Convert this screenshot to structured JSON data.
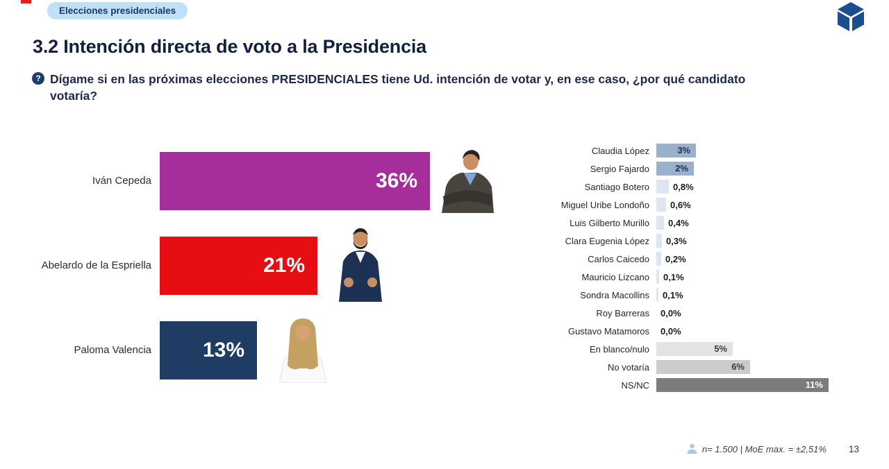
{
  "header": {
    "badge_label": "Elecciones presidenciales",
    "logo_icon": "cube-logo-icon"
  },
  "page": {
    "title": "3.2 Intención directa de voto a la Presidencia",
    "page_number": "13"
  },
  "question": {
    "icon": "question-mark-icon",
    "icon_glyph": "?",
    "lines": [
      "Dígame si en las próximas elecciones PRESIDENCIALES tiene Ud. intención de votar y, en ese caso, ¿por qué candidato",
      "votaría?"
    ]
  },
  "chart_data": [
    {
      "type": "bar",
      "orientation": "horizontal",
      "categories": [
        "Iván Cepeda",
        "Abelardo de la Espriella",
        "Paloma Valencia"
      ],
      "values": [
        36,
        21,
        13
      ],
      "value_labels": [
        "36%",
        "21%",
        "13%"
      ],
      "bar_colors": [
        "#A52E9C",
        "#E60D13",
        "#1F3D64"
      ],
      "value_label_color": "#FFFFFF",
      "xlim": [
        0,
        40
      ],
      "grid": false,
      "photos": [
        "ivan-cepeda-photo",
        "abelardo-espriella-photo",
        "paloma-valencia-photo"
      ]
    },
    {
      "type": "bar",
      "orientation": "horizontal",
      "categories": [
        "Claudia López",
        "Sergio Fajardo",
        "Santiago Botero",
        "Miguel Uribe Londoño",
        "Luis Gilberto Murillo",
        "Clara Eugenia López",
        "Carlos Caicedo",
        "Mauricio Lizcano",
        "Sondra Macollins",
        "Roy Barreras",
        "Gustavo Matamoros",
        "En blanco/nulo",
        "No votaría",
        "NS/NC"
      ],
      "values": [
        3,
        2,
        0.8,
        0.6,
        0.4,
        0.3,
        0.2,
        0.1,
        0.1,
        0.0,
        0.0,
        5,
        6,
        11
      ],
      "value_labels": [
        "3%",
        "2%",
        "0,8%",
        "0,6%",
        "0,4%",
        "0,3%",
        "0,2%",
        "0,1%",
        "0,1%",
        "0,0%",
        "0,0%",
        "5%",
        "6%",
        "11%"
      ],
      "bar_colors": [
        "#9AB1CC",
        "#9AB1CC",
        "#DCE6F2",
        "#DCE6F2",
        "#DCE6F2",
        "#DCE6F2",
        "#DCE6F2",
        "#DCE6F2",
        "#DCE6F2",
        "#DCE6F2",
        "#DCE6F2",
        "#E3E3E3",
        "#CBCBCB",
        "#7C7C7C"
      ],
      "label_inside": [
        true,
        true,
        false,
        false,
        false,
        false,
        false,
        false,
        false,
        false,
        false,
        true,
        true,
        true
      ],
      "value_colors": [
        "#1D2F4E",
        "#1D2F4E",
        "#1A1A1A",
        "#1A1A1A",
        "#1A1A1A",
        "#1A1A1A",
        "#1A1A1A",
        "#1A1A1A",
        "#1A1A1A",
        "#1A1A1A",
        "#1A1A1A",
        "#3A3A3A",
        "#3A3A3A",
        "#FFFFFF"
      ],
      "xlim": [
        0,
        12
      ],
      "grid": false
    }
  ],
  "footer": {
    "icon": "person-icon",
    "sample_note": "n= 1.500 | MoE max. = ±2,51%"
  }
}
